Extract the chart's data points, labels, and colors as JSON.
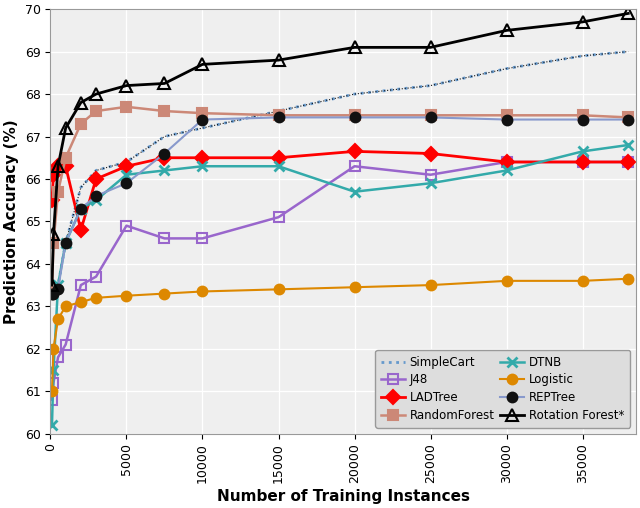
{
  "xlabel": "Number of Training Instances",
  "ylabel": "Prediction Accuracy (%)",
  "xlim": [
    0,
    38500
  ],
  "ylim": [
    60,
    70
  ],
  "yticks": [
    60,
    61,
    62,
    63,
    64,
    65,
    66,
    67,
    68,
    69,
    70
  ],
  "xticks": [
    0,
    5000,
    10000,
    15000,
    20000,
    25000,
    30000,
    35000
  ],
  "series": [
    {
      "name": "SimpleCart",
      "x": [
        100,
        200,
        500,
        1000,
        2000,
        3000,
        5000,
        7500,
        10000,
        15000,
        20000,
        25000,
        30000,
        35000,
        38000
      ],
      "y": [
        63.3,
        63.4,
        63.5,
        64.5,
        65.8,
        66.2,
        66.4,
        67.0,
        67.2,
        67.6,
        68.0,
        68.2,
        68.6,
        68.9,
        69.0
      ],
      "color": "#6699CC",
      "linestyle": "dotted",
      "marker": null,
      "linewidth": 2.0,
      "label": "SimpleCart",
      "extra_line": true
    },
    {
      "name": "J48",
      "x": [
        100,
        200,
        500,
        1000,
        2000,
        3000,
        5000,
        7500,
        10000,
        15000,
        20000,
        25000,
        30000,
        35000,
        38000
      ],
      "y": [
        60.8,
        61.2,
        61.8,
        62.1,
        63.5,
        63.7,
        64.9,
        64.6,
        64.6,
        65.1,
        66.3,
        66.1,
        66.4,
        66.4,
        66.4
      ],
      "color": "#9966CC",
      "linestyle": "solid",
      "marker": "s",
      "marker_filled": false,
      "linewidth": 1.8,
      "label": "J48"
    },
    {
      "name": "LADTree",
      "x": [
        100,
        200,
        500,
        1000,
        2000,
        3000,
        5000,
        7500,
        10000,
        15000,
        20000,
        25000,
        30000,
        35000,
        38000
      ],
      "y": [
        65.5,
        66.1,
        66.3,
        66.3,
        64.8,
        66.0,
        66.3,
        66.5,
        66.5,
        66.5,
        66.65,
        66.6,
        66.4,
        66.4,
        66.4
      ],
      "color": "#FF0000",
      "linestyle": "solid",
      "marker": "D",
      "marker_filled": true,
      "linewidth": 2.0,
      "label": "LADTree"
    },
    {
      "name": "RandomForest",
      "x": [
        100,
        200,
        500,
        1000,
        2000,
        3000,
        5000,
        7500,
        10000,
        15000,
        20000,
        25000,
        30000,
        35000,
        38000
      ],
      "y": [
        63.3,
        64.5,
        65.7,
        66.5,
        67.3,
        67.6,
        67.7,
        67.6,
        67.55,
        67.5,
        67.5,
        67.5,
        67.5,
        67.5,
        67.45
      ],
      "color": "#CC8877",
      "linestyle": "solid",
      "marker": "s",
      "marker_filled": true,
      "linewidth": 1.8,
      "label": "RandomForest"
    },
    {
      "name": "DTNB",
      "x": [
        100,
        200,
        500,
        1000,
        2000,
        3000,
        5000,
        7500,
        10000,
        15000,
        20000,
        25000,
        30000,
        35000,
        38000
      ],
      "y": [
        60.2,
        61.5,
        63.5,
        64.5,
        65.3,
        65.5,
        66.1,
        66.2,
        66.3,
        66.3,
        65.7,
        65.9,
        66.2,
        66.65,
        66.8
      ],
      "color": "#33AAAA",
      "linestyle": "solid",
      "marker": "x",
      "marker_filled": false,
      "linewidth": 1.8,
      "label": "DTNB"
    },
    {
      "name": "Logistic",
      "x": [
        100,
        200,
        500,
        1000,
        2000,
        3000,
        5000,
        7500,
        10000,
        15000,
        20000,
        25000,
        30000,
        35000,
        38000
      ],
      "y": [
        61.0,
        62.0,
        62.7,
        63.0,
        63.1,
        63.2,
        63.25,
        63.3,
        63.35,
        63.4,
        63.45,
        63.5,
        63.6,
        63.6,
        63.65
      ],
      "color": "#DD8800",
      "linestyle": "solid",
      "marker": "o",
      "marker_filled": true,
      "linewidth": 1.5,
      "label": "Logistic"
    },
    {
      "name": "REPTree",
      "x": [
        100,
        200,
        500,
        1000,
        2000,
        3000,
        5000,
        7500,
        10000,
        15000,
        20000,
        25000,
        30000,
        35000,
        38000
      ],
      "y": [
        63.3,
        63.3,
        63.4,
        64.5,
        65.3,
        65.6,
        65.9,
        66.6,
        67.4,
        67.45,
        67.45,
        67.45,
        67.4,
        67.4,
        67.4
      ],
      "color": "#8899CC",
      "linestyle": "solid",
      "marker": "o",
      "marker_filled": true,
      "marker_color": "#111111",
      "linewidth": 1.5,
      "label": "REPTree"
    },
    {
      "name": "RotationForest",
      "x": [
        100,
        200,
        500,
        1000,
        2000,
        3000,
        5000,
        7500,
        10000,
        15000,
        20000,
        25000,
        30000,
        35000,
        38000
      ],
      "y": [
        63.5,
        64.7,
        66.3,
        67.2,
        67.8,
        68.0,
        68.2,
        68.25,
        68.7,
        68.8,
        69.1,
        69.1,
        69.5,
        69.7,
        69.9
      ],
      "color": "#000000",
      "linestyle": "solid",
      "marker": "^",
      "marker_filled": false,
      "linewidth": 2.0,
      "label": "Rotation Forest*"
    }
  ],
  "bg_color": "#EFEFEF",
  "legend_bg": "#DDDDDD",
  "fig_bg": "#FFFFFF"
}
